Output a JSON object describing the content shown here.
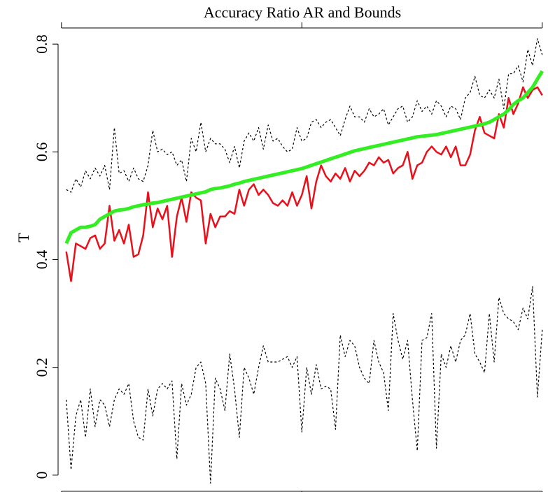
{
  "chart_data": {
    "type": "line",
    "title": "Accuracy Ratio AR and Bounds",
    "y_label": "T",
    "x": [
      1,
      2,
      3,
      4,
      5,
      6,
      7,
      8,
      9,
      10,
      11,
      12,
      13,
      14,
      15,
      16,
      17,
      18,
      19,
      20,
      21,
      22,
      23,
      24,
      25,
      26,
      27,
      28,
      29,
      30,
      31,
      32,
      33,
      34,
      35,
      36,
      37,
      38,
      39,
      40,
      41,
      42,
      43,
      44,
      45,
      46,
      47,
      48,
      49,
      50,
      51,
      52,
      53,
      54,
      55,
      56,
      57,
      58,
      59,
      60,
      61,
      62,
      63,
      64,
      65,
      66,
      67,
      68,
      69,
      70,
      71,
      72,
      73,
      74,
      75,
      76,
      77,
      78,
      79,
      80,
      81,
      82,
      83,
      84,
      85,
      86,
      87,
      88,
      89,
      90,
      91,
      92,
      93,
      94,
      95,
      96,
      97,
      98,
      99,
      100
    ],
    "xlim": [
      -0.7,
      101.2
    ],
    "xticks": [
      0,
      50,
      100
    ],
    "ylim": [
      -0.03,
      0.83
    ],
    "yticks": [
      0,
      0.2,
      0.4,
      0.6,
      0.8
    ],
    "series": [
      {
        "color": "#000000",
        "dash": true,
        "values": [
          0.53,
          0.525,
          0.55,
          0.535,
          0.565,
          0.55,
          0.57,
          0.555,
          0.575,
          0.53,
          0.645,
          0.56,
          0.565,
          0.545,
          0.57,
          0.55,
          0.545,
          0.575,
          0.64,
          0.6,
          0.605,
          0.595,
          0.6,
          0.575,
          0.585,
          0.545,
          0.625,
          0.6,
          0.655,
          0.6,
          0.625,
          0.615,
          0.615,
          0.605,
          0.58,
          0.61,
          0.57,
          0.62,
          0.635,
          0.62,
          0.645,
          0.605,
          0.65,
          0.62,
          0.625,
          0.61,
          0.6,
          0.605,
          0.645,
          0.62,
          0.625,
          0.655,
          0.66,
          0.645,
          0.655,
          0.66,
          0.645,
          0.63,
          0.66,
          0.685,
          0.665,
          0.665,
          0.655,
          0.68,
          0.665,
          0.67,
          0.68,
          0.65,
          0.665,
          0.68,
          0.685,
          0.655,
          0.665,
          0.695,
          0.675,
          0.685,
          0.67,
          0.695,
          0.685,
          0.665,
          0.685,
          0.68,
          0.66,
          0.7,
          0.71,
          0.74,
          0.705,
          0.7,
          0.715,
          0.7,
          0.735,
          0.68,
          0.745,
          0.745,
          0.76,
          0.73,
          0.79,
          0.76,
          0.81,
          0.78
        ]
      },
      {
        "color": "#000000",
        "dash": true,
        "values": [
          0.14,
          0.01,
          0.11,
          0.14,
          0.07,
          0.16,
          0.09,
          0.14,
          0.13,
          0.09,
          0.14,
          0.16,
          0.15,
          0.17,
          0.1,
          0.07,
          0.065,
          0.16,
          0.11,
          0.16,
          0.17,
          0.16,
          0.175,
          0.03,
          0.17,
          0.13,
          0.15,
          0.2,
          0.21,
          0.17,
          -0.015,
          0.18,
          0.16,
          0.12,
          0.225,
          0.16,
          0.07,
          0.2,
          0.18,
          0.15,
          0.2,
          0.24,
          0.21,
          0.21,
          0.21,
          0.215,
          0.22,
          0.2,
          0.22,
          0.08,
          0.2,
          0.15,
          0.205,
          0.16,
          0.165,
          0.16,
          0.085,
          0.26,
          0.22,
          0.25,
          0.24,
          0.2,
          0.18,
          0.17,
          0.25,
          0.21,
          0.19,
          0.12,
          0.3,
          0.25,
          0.215,
          0.25,
          0.14,
          0.045,
          0.25,
          0.255,
          0.3,
          0.05,
          0.225,
          0.2,
          0.24,
          0.21,
          0.25,
          0.26,
          0.3,
          0.225,
          0.21,
          0.19,
          0.3,
          0.21,
          0.33,
          0.3,
          0.29,
          0.285,
          0.27,
          0.31,
          0.29,
          0.35,
          0.145,
          0.27
        ]
      },
      {
        "color": "#e8101a",
        "width": 2.5,
        "values": [
          0.415,
          0.36,
          0.43,
          0.425,
          0.42,
          0.44,
          0.445,
          0.42,
          0.43,
          0.5,
          0.435,
          0.455,
          0.43,
          0.465,
          0.405,
          0.41,
          0.445,
          0.525,
          0.46,
          0.495,
          0.475,
          0.5,
          0.405,
          0.48,
          0.515,
          0.47,
          0.525,
          0.515,
          0.51,
          0.43,
          0.485,
          0.46,
          0.48,
          0.48,
          0.49,
          0.485,
          0.53,
          0.5,
          0.53,
          0.54,
          0.52,
          0.53,
          0.52,
          0.505,
          0.5,
          0.51,
          0.5,
          0.525,
          0.5,
          0.52,
          0.555,
          0.495,
          0.545,
          0.575,
          0.555,
          0.545,
          0.56,
          0.55,
          0.57,
          0.545,
          0.565,
          0.555,
          0.565,
          0.58,
          0.575,
          0.59,
          0.58,
          0.585,
          0.56,
          0.57,
          0.575,
          0.6,
          0.55,
          0.575,
          0.58,
          0.6,
          0.61,
          0.6,
          0.595,
          0.61,
          0.59,
          0.61,
          0.575,
          0.575,
          0.595,
          0.64,
          0.665,
          0.635,
          0.63,
          0.625,
          0.67,
          0.645,
          0.7,
          0.67,
          0.69,
          0.72,
          0.7,
          0.715,
          0.72,
          0.705
        ]
      },
      {
        "color": "#33ee22",
        "width": 5,
        "values": [
          0.43,
          0.45,
          0.455,
          0.46,
          0.46,
          0.462,
          0.465,
          0.475,
          0.48,
          0.485,
          0.49,
          0.492,
          0.493,
          0.495,
          0.498,
          0.5,
          0.502,
          0.503,
          0.505,
          0.506,
          0.508,
          0.51,
          0.512,
          0.514,
          0.516,
          0.518,
          0.52,
          0.522,
          0.524,
          0.526,
          0.53,
          0.532,
          0.533,
          0.535,
          0.537,
          0.54,
          0.542,
          0.545,
          0.547,
          0.549,
          0.551,
          0.553,
          0.555,
          0.557,
          0.559,
          0.561,
          0.563,
          0.565,
          0.567,
          0.569,
          0.572,
          0.575,
          0.578,
          0.581,
          0.584,
          0.587,
          0.59,
          0.593,
          0.596,
          0.599,
          0.602,
          0.604,
          0.606,
          0.608,
          0.61,
          0.612,
          0.614,
          0.616,
          0.618,
          0.62,
          0.622,
          0.624,
          0.626,
          0.628,
          0.629,
          0.63,
          0.631,
          0.632,
          0.634,
          0.636,
          0.638,
          0.64,
          0.642,
          0.644,
          0.646,
          0.648,
          0.65,
          0.652,
          0.655,
          0.66,
          0.665,
          0.67,
          0.678,
          0.688,
          0.695,
          0.7,
          0.71,
          0.72,
          0.735,
          0.75
        ]
      }
    ]
  }
}
